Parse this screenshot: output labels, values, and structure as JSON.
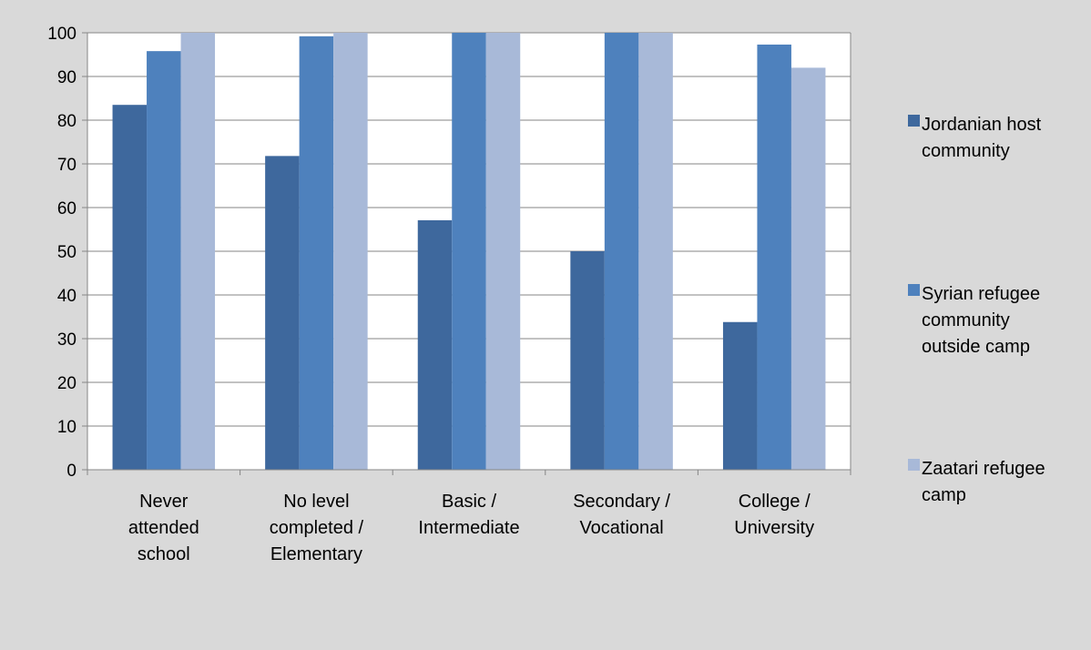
{
  "chart_data": {
    "type": "bar",
    "categories": [
      [
        "Never",
        "attended",
        "school"
      ],
      [
        "No level",
        "completed /",
        "Elementary"
      ],
      [
        "Basic /",
        "Intermediate"
      ],
      [
        "Secondary /",
        "Vocational"
      ],
      [
        "College /",
        "University"
      ]
    ],
    "series": [
      {
        "name": "Jordanian host community",
        "legend_lines": [
          "Jordanian host",
          "community"
        ],
        "color": "#3e689d",
        "values": [
          83.5,
          71.8,
          57.1,
          50.0,
          33.8
        ]
      },
      {
        "name": "Syrian refugee community outside camp",
        "legend_lines": [
          "Syrian refugee",
          "community",
          "outside camp"
        ],
        "color": "#4e81bd",
        "values": [
          95.8,
          99.2,
          100,
          100,
          97.3
        ]
      },
      {
        "name": "Zaatari refugee camp",
        "legend_lines": [
          "Zaatari refugee",
          "camp"
        ],
        "color": "#a8b9d8",
        "values": [
          100,
          100,
          100,
          100,
          92.0
        ]
      }
    ],
    "ylim": [
      0,
      100
    ],
    "yticks": [
      "0",
      "10",
      "20",
      "30",
      "40",
      "50",
      "60",
      "70",
      "80",
      "90",
      "100"
    ],
    "grid": true,
    "legend_position": "right",
    "title": "",
    "xlabel": "",
    "ylabel": ""
  }
}
